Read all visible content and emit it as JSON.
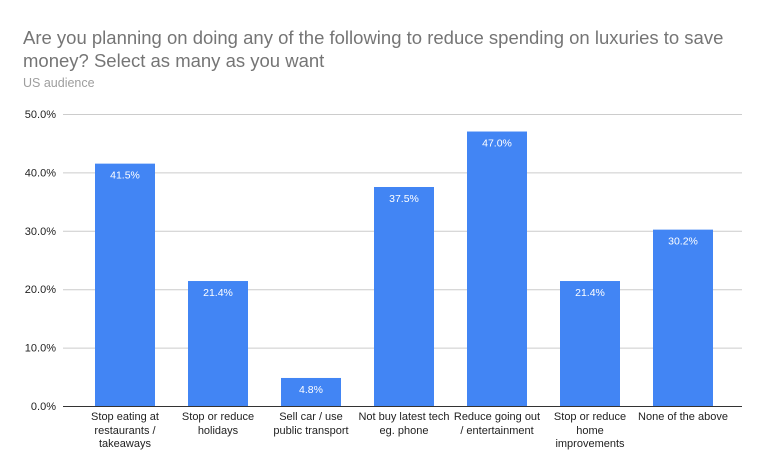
{
  "chart_data": {
    "type": "bar",
    "title": "Are you planning on doing any of the following to reduce spending on luxuries to save money? Select as many as you want",
    "subtitle": "US audience",
    "categories": [
      "Stop eating at restaurants / takeaways",
      "Stop or reduce holidays",
      "Sell car / use public transport",
      "Not buy latest tech eg. phone",
      "Reduce going out / entertainment",
      "Stop or reduce home improvements",
      "None of the above"
    ],
    "values": [
      41.5,
      21.4,
      4.8,
      37.5,
      47.0,
      21.4,
      30.2
    ],
    "data_labels": [
      "41.5%",
      "21.4%",
      "4.8%",
      "37.5%",
      "47.0%",
      "21.4%",
      "30.2%"
    ],
    "yticks": [
      "0.0%",
      "10.0%",
      "20.0%",
      "30.0%",
      "40.0%",
      "50.0%"
    ],
    "ylim": [
      0,
      50
    ],
    "grid": true,
    "bar_color": "#4285f4",
    "xlabel": "",
    "ylabel": ""
  }
}
